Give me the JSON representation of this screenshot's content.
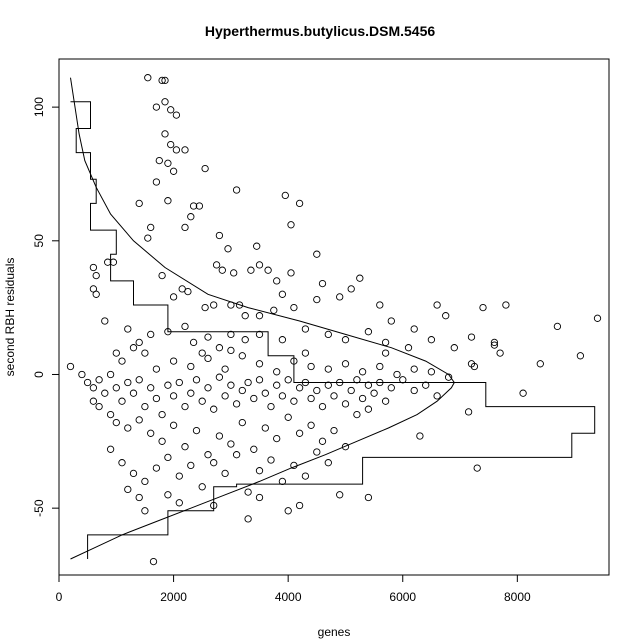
{
  "chart_data": {
    "type": "scatter",
    "title": "Hyperthermus.butylicus.DSM.5456",
    "xlabel": "genes",
    "ylabel": "second RBH residuals",
    "xlim": [
      0,
      9600
    ],
    "ylim": [
      -75,
      118
    ],
    "x_ticks": [
      "0",
      "2000",
      "4000",
      "6000",
      "8000"
    ],
    "y_ticks": [
      "-50",
      "0",
      "50",
      "100"
    ],
    "grid": false,
    "legend": "none",
    "histogram_steps": [
      [
        -69,
        500
      ],
      [
        -60,
        500
      ],
      [
        -60,
        1900
      ],
      [
        -51,
        1900
      ],
      [
        -51,
        2700
      ],
      [
        -42,
        2700
      ],
      [
        -42,
        3100
      ],
      [
        -41,
        3100
      ],
      [
        -41,
        5300
      ],
      [
        -31,
        5300
      ],
      [
        -31,
        8950
      ],
      [
        -22,
        8950
      ],
      [
        -22,
        9350
      ],
      [
        -12,
        9350
      ],
      [
        -12,
        7450
      ],
      [
        -3,
        7450
      ],
      [
        -3,
        4100
      ],
      [
        7,
        4100
      ],
      [
        7,
        3650
      ],
      [
        16,
        3650
      ],
      [
        16,
        1900
      ],
      [
        26,
        1900
      ],
      [
        26,
        1300
      ],
      [
        35,
        1300
      ],
      [
        35,
        900
      ],
      [
        45,
        900
      ],
      [
        45,
        1000
      ],
      [
        54,
        1000
      ],
      [
        54,
        550
      ],
      [
        64,
        550
      ],
      [
        64,
        650
      ],
      [
        73,
        650
      ],
      [
        73,
        550
      ],
      [
        83,
        550
      ],
      [
        83,
        300
      ],
      [
        92,
        300
      ],
      [
        92,
        550
      ],
      [
        102,
        550
      ],
      [
        102,
        200
      ]
    ],
    "density_curve": [
      [
        -69,
        200
      ],
      [
        -65,
        600
      ],
      [
        -60,
        1100
      ],
      [
        -55,
        1700
      ],
      [
        -50,
        2300
      ],
      [
        -45,
        2900
      ],
      [
        -40,
        3500
      ],
      [
        -35,
        4050
      ],
      [
        -30,
        4650
      ],
      [
        -25,
        5200
      ],
      [
        -20,
        5750
      ],
      [
        -15,
        6250
      ],
      [
        -10,
        6600
      ],
      [
        -5,
        6850
      ],
      [
        -3,
        6900
      ],
      [
        0,
        6800
      ],
      [
        5,
        6400
      ],
      [
        10,
        5800
      ],
      [
        15,
        5000
      ],
      [
        20,
        4200
      ],
      [
        25,
        3300
      ],
      [
        30,
        2600
      ],
      [
        40,
        1850
      ],
      [
        50,
        1300
      ],
      [
        60,
        900
      ],
      [
        70,
        650
      ],
      [
        80,
        450
      ],
      [
        90,
        350
      ],
      [
        100,
        280
      ],
      [
        111,
        200
      ]
    ],
    "points": [
      [
        1550,
        111
      ],
      [
        1800,
        110
      ],
      [
        1850,
        110
      ],
      [
        1700,
        100
      ],
      [
        1850,
        102
      ],
      [
        1950,
        99
      ],
      [
        2050,
        97
      ],
      [
        1850,
        90
      ],
      [
        1950,
        86
      ],
      [
        2050,
        84
      ],
      [
        2200,
        84
      ],
      [
        1750,
        80
      ],
      [
        1900,
        79
      ],
      [
        2000,
        76
      ],
      [
        2550,
        77
      ],
      [
        1700,
        72
      ],
      [
        3100,
        69
      ],
      [
        1900,
        65
      ],
      [
        2350,
        63
      ],
      [
        2450,
        63
      ],
      [
        1400,
        64
      ],
      [
        3950,
        67
      ],
      [
        4200,
        64
      ],
      [
        2300,
        59
      ],
      [
        2200,
        55
      ],
      [
        1600,
        55
      ],
      [
        1550,
        51
      ],
      [
        2800,
        52
      ],
      [
        4050,
        56
      ],
      [
        2950,
        47
      ],
      [
        3450,
        48
      ],
      [
        2750,
        41
      ],
      [
        2850,
        39
      ],
      [
        4500,
        45
      ],
      [
        4050,
        38
      ],
      [
        3350,
        39
      ],
      [
        3500,
        41
      ],
      [
        3650,
        39
      ],
      [
        1800,
        37
      ],
      [
        600,
        40
      ],
      [
        650,
        37
      ],
      [
        850,
        42
      ],
      [
        950,
        42
      ],
      [
        600,
        32
      ],
      [
        650,
        30
      ],
      [
        3050,
        38
      ],
      [
        3800,
        35
      ],
      [
        4600,
        34
      ],
      [
        5250,
        36
      ],
      [
        4900,
        29
      ],
      [
        5100,
        32
      ],
      [
        2150,
        32
      ],
      [
        2250,
        31
      ],
      [
        3900,
        30
      ],
      [
        2000,
        29
      ],
      [
        2550,
        25
      ],
      [
        3000,
        26
      ],
      [
        3150,
        26
      ],
      [
        2700,
        26
      ],
      [
        3250,
        22
      ],
      [
        3500,
        22
      ],
      [
        3750,
        24
      ],
      [
        4100,
        25
      ],
      [
        4500,
        28
      ],
      [
        5600,
        26
      ],
      [
        6600,
        26
      ],
      [
        6750,
        22
      ],
      [
        7400,
        25
      ],
      [
        7800,
        26
      ],
      [
        8700,
        18
      ],
      [
        9400,
        21
      ],
      [
        5800,
        20
      ],
      [
        6200,
        17
      ],
      [
        7200,
        14
      ],
      [
        7600,
        12
      ],
      [
        7700,
        8
      ],
      [
        9100,
        7
      ],
      [
        8400,
        4
      ],
      [
        800,
        20
      ],
      [
        1200,
        17
      ],
      [
        1400,
        12
      ],
      [
        1600,
        15
      ],
      [
        1900,
        16
      ],
      [
        2200,
        18
      ],
      [
        2350,
        12
      ],
      [
        2600,
        14
      ],
      [
        2800,
        10
      ],
      [
        3000,
        15
      ],
      [
        3250,
        13
      ],
      [
        3500,
        15
      ],
      [
        3900,
        13
      ],
      [
        4300,
        17
      ],
      [
        4700,
        15
      ],
      [
        5000,
        13
      ],
      [
        5400,
        16
      ],
      [
        5700,
        12
      ],
      [
        6100,
        10
      ],
      [
        6500,
        13
      ],
      [
        6900,
        10
      ],
      [
        7200,
        4
      ],
      [
        7250,
        3
      ],
      [
        7600,
        11
      ],
      [
        200,
        3
      ],
      [
        400,
        0
      ],
      [
        500,
        -3
      ],
      [
        600,
        -5
      ],
      [
        700,
        -2
      ],
      [
        800,
        -7
      ],
      [
        900,
        0
      ],
      [
        1000,
        -5
      ],
      [
        1100,
        -10
      ],
      [
        1200,
        -3
      ],
      [
        1300,
        -7
      ],
      [
        1400,
        -2
      ],
      [
        1500,
        -12
      ],
      [
        1600,
        -5
      ],
      [
        1700,
        -9
      ],
      [
        1800,
        -15
      ],
      [
        1900,
        -4
      ],
      [
        2000,
        -8
      ],
      [
        2100,
        -3
      ],
      [
        2200,
        -12
      ],
      [
        2300,
        -7
      ],
      [
        2400,
        -2
      ],
      [
        2500,
        -10
      ],
      [
        2600,
        -5
      ],
      [
        2700,
        -13
      ],
      [
        2800,
        -1
      ],
      [
        2900,
        -8
      ],
      [
        3000,
        -4
      ],
      [
        3100,
        -11
      ],
      [
        3200,
        -6
      ],
      [
        3300,
        -3
      ],
      [
        3400,
        -9
      ],
      [
        3500,
        -2
      ],
      [
        3600,
        -7
      ],
      [
        3700,
        -12
      ],
      [
        3800,
        -4
      ],
      [
        3900,
        -8
      ],
      [
        4000,
        -2
      ],
      [
        4100,
        -10
      ],
      [
        4200,
        -5
      ],
      [
        4300,
        -3
      ],
      [
        4400,
        -9
      ],
      [
        4500,
        -6
      ],
      [
        4600,
        -12
      ],
      [
        4700,
        -4
      ],
      [
        4800,
        -8
      ],
      [
        4900,
        -3
      ],
      [
        5000,
        -11
      ],
      [
        5100,
        -6
      ],
      [
        5200,
        -2
      ],
      [
        5300,
        -9
      ],
      [
        5400,
        -4
      ],
      [
        5500,
        -7
      ],
      [
        5600,
        -3
      ],
      [
        5700,
        -10
      ],
      [
        5800,
        -5
      ],
      [
        6000,
        -2
      ],
      [
        6200,
        -6
      ],
      [
        6400,
        -4
      ],
      [
        6600,
        -8
      ],
      [
        6800,
        -1
      ],
      [
        7150,
        -14
      ],
      [
        8100,
        -7
      ],
      [
        7300,
        -35
      ],
      [
        6300,
        -23
      ],
      [
        2000,
        5
      ],
      [
        2300,
        3
      ],
      [
        2600,
        6
      ],
      [
        2900,
        2
      ],
      [
        3200,
        7
      ],
      [
        3500,
        4
      ],
      [
        3800,
        1
      ],
      [
        4100,
        5
      ],
      [
        4400,
        3
      ],
      [
        4700,
        2
      ],
      [
        5000,
        4
      ],
      [
        5300,
        1
      ],
      [
        5600,
        3
      ],
      [
        5900,
        0
      ],
      [
        6200,
        2
      ],
      [
        6500,
        1
      ],
      [
        600,
        -10
      ],
      [
        700,
        -12
      ],
      [
        900,
        -15
      ],
      [
        1000,
        -18
      ],
      [
        1200,
        -20
      ],
      [
        1400,
        -17
      ],
      [
        1600,
        -22
      ],
      [
        1800,
        -25
      ],
      [
        2000,
        -19
      ],
      [
        2200,
        -27
      ],
      [
        2400,
        -21
      ],
      [
        2600,
        -30
      ],
      [
        2800,
        -23
      ],
      [
        3000,
        -26
      ],
      [
        3200,
        -18
      ],
      [
        3400,
        -28
      ],
      [
        3600,
        -20
      ],
      [
        3800,
        -24
      ],
      [
        4000,
        -16
      ],
      [
        4200,
        -22
      ],
      [
        4400,
        -19
      ],
      [
        4600,
        -25
      ],
      [
        4800,
        -21
      ],
      [
        5000,
        -27
      ],
      [
        5200,
        -15
      ],
      [
        5400,
        -13
      ],
      [
        900,
        -28
      ],
      [
        1100,
        -33
      ],
      [
        1300,
        -37
      ],
      [
        1500,
        -40
      ],
      [
        1700,
        -35
      ],
      [
        1900,
        -31
      ],
      [
        2100,
        -38
      ],
      [
        2300,
        -34
      ],
      [
        2500,
        -42
      ],
      [
        2700,
        -33
      ],
      [
        2900,
        -37
      ],
      [
        3100,
        -30
      ],
      [
        3300,
        -44
      ],
      [
        3500,
        -36
      ],
      [
        3700,
        -32
      ],
      [
        3900,
        -40
      ],
      [
        4100,
        -34
      ],
      [
        4300,
        -38
      ],
      [
        4500,
        -29
      ],
      [
        4700,
        -33
      ],
      [
        4900,
        -45
      ],
      [
        1200,
        -43
      ],
      [
        1400,
        -46
      ],
      [
        1500,
        -51
      ],
      [
        1900,
        -45
      ],
      [
        2100,
        -48
      ],
      [
        2700,
        -49
      ],
      [
        3300,
        -54
      ],
      [
        3500,
        -46
      ],
      [
        4000,
        -51
      ],
      [
        4200,
        -49
      ],
      [
        5400,
        -46
      ],
      [
        1650,
        -70
      ],
      [
        1000,
        8
      ],
      [
        1100,
        5
      ],
      [
        1300,
        10
      ],
      [
        1500,
        8
      ],
      [
        1700,
        2
      ],
      [
        2500,
        8
      ],
      [
        3000,
        9
      ],
      [
        4300,
        8
      ],
      [
        5700,
        8
      ]
    ]
  }
}
